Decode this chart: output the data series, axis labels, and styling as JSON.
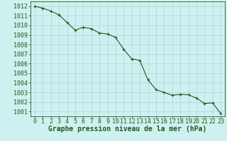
{
  "x": [
    0,
    1,
    2,
    3,
    4,
    5,
    6,
    7,
    8,
    9,
    10,
    11,
    12,
    13,
    14,
    15,
    16,
    17,
    18,
    19,
    20,
    21,
    22,
    23
  ],
  "y": [
    1012.0,
    1011.8,
    1011.5,
    1011.1,
    1010.3,
    1009.5,
    1009.8,
    1009.65,
    1009.2,
    1009.1,
    1008.75,
    1007.5,
    1006.5,
    1006.35,
    1004.3,
    1003.3,
    1003.0,
    1002.7,
    1002.8,
    1002.75,
    1002.4,
    1001.85,
    1001.9,
    1000.8
  ],
  "line_color": "#1a5c1a",
  "marker": "P",
  "marker_size": 2.5,
  "bg_color": "#cff0f0",
  "grid_color": "#a8d8d8",
  "xlabel": "Graphe pression niveau de la mer (hPa)",
  "xlabel_fontsize": 7,
  "tick_fontsize": 6,
  "ylim": [
    1000.5,
    1012.5
  ],
  "yticks": [
    1001,
    1002,
    1003,
    1004,
    1005,
    1006,
    1007,
    1008,
    1009,
    1010,
    1011,
    1012
  ],
  "xlim": [
    -0.5,
    23.5
  ],
  "xticks": [
    0,
    1,
    2,
    3,
    4,
    5,
    6,
    7,
    8,
    9,
    10,
    11,
    12,
    13,
    14,
    15,
    16,
    17,
    18,
    19,
    20,
    21,
    22,
    23
  ]
}
